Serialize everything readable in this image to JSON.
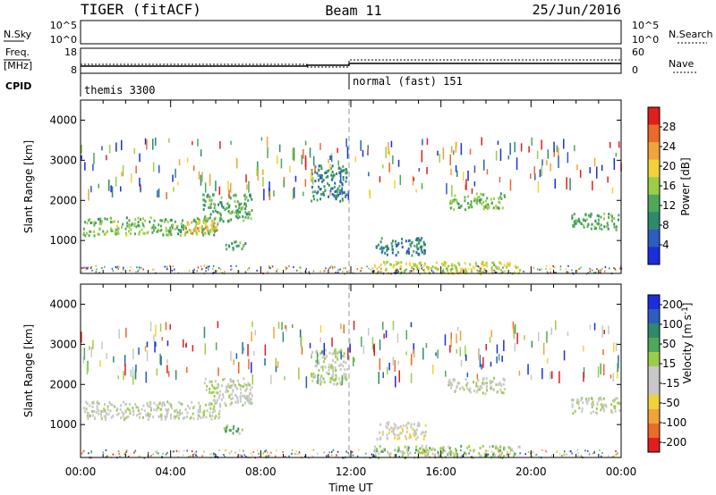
{
  "header": {
    "radar": "TIGER (fitACF)",
    "beam": "Beam 11",
    "date": "25/Jun/2016"
  },
  "status_panels": {
    "nsky_label": "N.Sky",
    "nsky_ticks": [
      "10^5",
      "10^0"
    ],
    "nsearch_label": "N.Search",
    "nsearch_ticks": [
      "10^5",
      "10^0"
    ],
    "freq_label_1": "Freq.",
    "freq_label_2": "[MHz]",
    "freq_ticks": [
      "18",
      "8"
    ],
    "nave_label": "Nave",
    "nave_ticks": [
      "60",
      "0"
    ],
    "cpid_label": "CPID",
    "cpid_segments": [
      {
        "name": "themis 3300",
        "start_hour": 0,
        "end_hour": 12
      },
      {
        "name": "normal (fast) 151",
        "start_hour": 12,
        "end_hour": 24
      }
    ]
  },
  "chart_data": [
    {
      "type": "heatmap",
      "name": "power-panel",
      "ylabel": "Slant Range [km]",
      "xlabel": "",
      "x_unit": "hours UT",
      "xlim": [
        0,
        24
      ],
      "ylim": [
        180,
        4500
      ],
      "y_ticks": [
        1000,
        2000,
        3000,
        4000
      ],
      "colorbar": {
        "label": "Power [dB]",
        "range": [
          0,
          32
        ],
        "ticks": [
          4,
          8,
          12,
          16,
          20,
          24,
          28
        ],
        "colors": [
          "#1a2ee0",
          "#2c5dbf",
          "#2e8a6a",
          "#4fa85a",
          "#9ccd48",
          "#f2d23a",
          "#f0a43a",
          "#ec6a2a",
          "#e01e1e"
        ]
      },
      "echo_regions": [
        {
          "t0": 0.1,
          "t1": 6.2,
          "r0": 1150,
          "r1": 1600,
          "level": 14
        },
        {
          "t0": 4.6,
          "t1": 6.0,
          "r0": 1200,
          "r1": 1500,
          "level": 22
        },
        {
          "t0": 5.4,
          "t1": 7.6,
          "r0": 1500,
          "r1": 2200,
          "level": 12
        },
        {
          "t0": 6.3,
          "t1": 7.3,
          "r0": 800,
          "r1": 1000,
          "level": 12
        },
        {
          "t0": 10.2,
          "t1": 11.8,
          "r0": 2000,
          "r1": 2900,
          "level": 9
        },
        {
          "t0": 13.1,
          "t1": 15.3,
          "r0": 650,
          "r1": 1100,
          "level": 8
        },
        {
          "t0": 13.0,
          "t1": 19.5,
          "r0": 200,
          "r1": 500,
          "level": 18
        },
        {
          "t0": 16.3,
          "t1": 18.8,
          "r0": 1800,
          "r1": 2200,
          "level": 14
        },
        {
          "t0": 21.7,
          "t1": 23.9,
          "r0": 1300,
          "r1": 1700,
          "level": 12
        }
      ]
    },
    {
      "type": "heatmap",
      "name": "velocity-panel",
      "ylabel": "Slant Range [km]",
      "xlabel": "Time UT",
      "x_unit": "hours UT",
      "xlim": [
        0,
        24
      ],
      "ylim": [
        180,
        4500
      ],
      "y_ticks": [
        1000,
        2000,
        3000,
        4000
      ],
      "colorbar": {
        "label": "Velocity [m s^-1]",
        "range": [
          -250,
          250
        ],
        "ticks": [
          200,
          100,
          50,
          15,
          -15,
          -50,
          -100,
          -200
        ],
        "colors": [
          "#e01e1e",
          "#ec6a2a",
          "#f0a43a",
          "#f2d23a",
          "#c8c8c8",
          "#c8c8c8",
          "#9ccd48",
          "#4fa85a",
          "#2e8a6a",
          "#2c5dbf",
          "#1a2ee0"
        ]
      },
      "echo_regions": [
        {
          "t0": 0.1,
          "t1": 6.2,
          "r0": 1150,
          "r1": 1600,
          "level": 0
        },
        {
          "t0": 5.4,
          "t1": 7.6,
          "r0": 1500,
          "r1": 2200,
          "level": 0
        },
        {
          "t0": 6.3,
          "t1": 7.3,
          "r0": 800,
          "r1": 1000,
          "level": 60
        },
        {
          "t0": 10.2,
          "t1": 11.8,
          "r0": 2000,
          "r1": 2900,
          "level": 10
        },
        {
          "t0": 13.1,
          "t1": 15.3,
          "r0": 650,
          "r1": 1100,
          "level": -40
        },
        {
          "t0": 13.0,
          "t1": 19.5,
          "r0": 200,
          "r1": 500,
          "level": 40
        },
        {
          "t0": 16.3,
          "t1": 18.8,
          "r0": 1800,
          "r1": 2200,
          "level": 0
        },
        {
          "t0": 21.7,
          "t1": 23.9,
          "r0": 1300,
          "r1": 1700,
          "level": 0
        }
      ]
    }
  ],
  "time_axis": {
    "ticks": [
      "00:00",
      "04:00",
      "08:00",
      "12:00",
      "16:00",
      "20:00",
      "00:00"
    ],
    "label": "Time UT"
  }
}
